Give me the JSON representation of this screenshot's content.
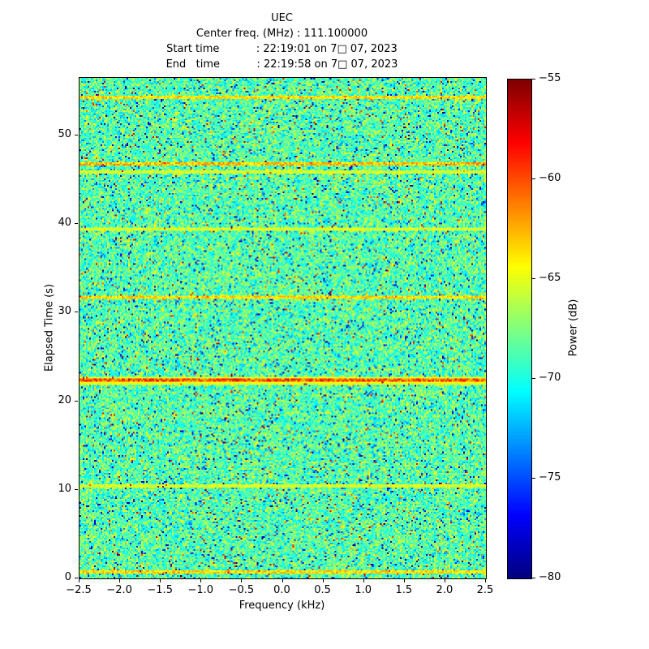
{
  "figure": {
    "title": "UEC",
    "header_lines": [
      "Center freq. (MHz) : 111.100000",
      "Start time           : 22:19:01 on 7□ 07, 2023",
      "End   time           : 22:19:58 on 7□ 07, 2023"
    ]
  },
  "chart_data": {
    "type": "heatmap",
    "title": "UEC",
    "subtitle_lines": [
      "Center freq. (MHz) : 111.100000",
      "Start time : 22:19:01 on 7□ 07, 2023",
      "End time : 22:19:58 on 7□ 07, 2023"
    ],
    "xlabel": "Frequency (kHz)",
    "ylabel": "Elapsed Time (s)",
    "colorbar_label": "Power (dB)",
    "xlim": [
      -2.5,
      2.5
    ],
    "ylim": [
      0,
      56.5
    ],
    "clim": [
      -80,
      -55
    ],
    "x_ticks": [
      -2.5,
      -2.0,
      -1.5,
      -1.0,
      -0.5,
      0.0,
      0.5,
      1.0,
      1.5,
      2.0,
      2.5
    ],
    "y_ticks": [
      0,
      10,
      20,
      30,
      40,
      50
    ],
    "colorbar_ticks": [
      -55,
      -60,
      -65,
      -70,
      -75,
      -80
    ],
    "colormap": "jet",
    "grid": false,
    "legend": null,
    "noise": {
      "description": "broadband noise floor speckle",
      "mean_db": -68.6,
      "std_db": 2.2,
      "bright_outlier_fraction": 0.012,
      "dark_outlier_fraction": 0.028,
      "seed": 1337,
      "cells_x": 250,
      "cells_y": 308
    },
    "feature_rows": [
      {
        "time_s": 0.7,
        "boost_db": 6,
        "note": "faint orange streak near bottom"
      },
      {
        "time_s": 10.4,
        "boost_db": 4,
        "note": "very faint streak"
      },
      {
        "time_s": 22.3,
        "boost_db": 10,
        "note": "strong orange-red line across full band"
      },
      {
        "time_s": 31.7,
        "boost_db": 6,
        "note": "moderate orange streak"
      },
      {
        "time_s": 39.5,
        "boost_db": 4,
        "note": "faint streak"
      },
      {
        "time_s": 45.8,
        "boost_db": 4,
        "note": "faint streak"
      },
      {
        "time_s": 46.8,
        "boost_db": 7,
        "note": "moderate orange streak"
      },
      {
        "time_s": 54.3,
        "boost_db": 6,
        "note": "moderate orange streak"
      }
    ]
  }
}
